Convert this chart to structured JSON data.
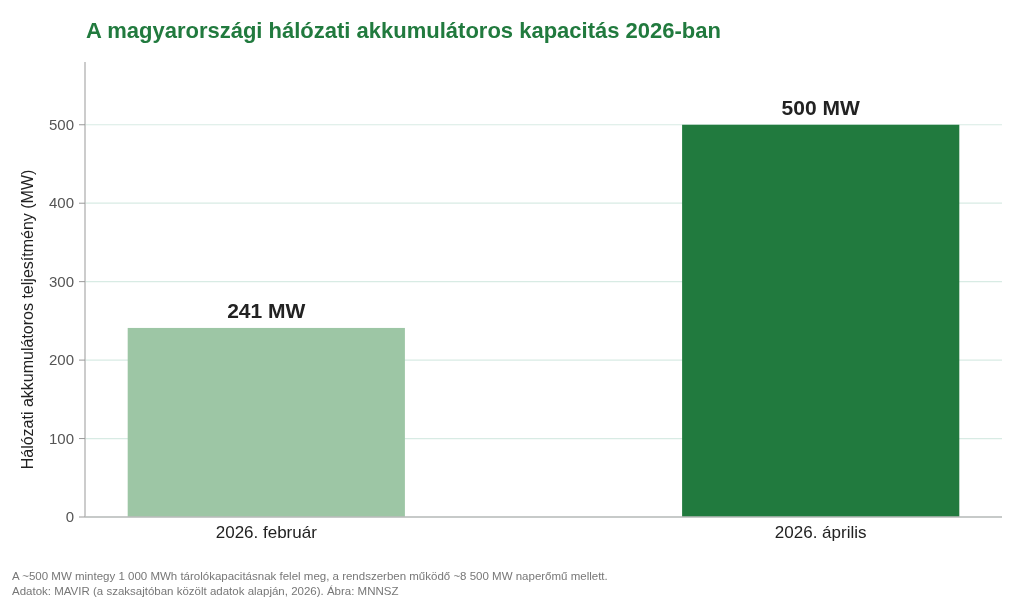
{
  "chart_data": {
    "type": "bar",
    "title": "A magyarországi hálózati akkumulátoros kapacitás 2026-ban",
    "ylabel": "Hálózati akkumulátoros teljesítmény (MW)",
    "categories": [
      "2026. február",
      "2026. április"
    ],
    "values": [
      241,
      500
    ],
    "colors": [
      "#9dc6a5",
      "#217a3e"
    ],
    "value_labels": [
      "241 MW",
      "500 MW"
    ],
    "ylim": [
      0,
      580
    ],
    "yticks": [
      0,
      100,
      200,
      300,
      400,
      500
    ],
    "grid": "y",
    "annotations": [
      "A ~500 MW mintegy 1 000 MWh tárolókapacitásnak felel meg, a rendszerben működő ~8 500 MW naperőmű mellett.",
      "Adatok: MAVIR (a szaksajtóban közölt adatok alapján, 2026).  Ábra: MNNSZ"
    ]
  }
}
